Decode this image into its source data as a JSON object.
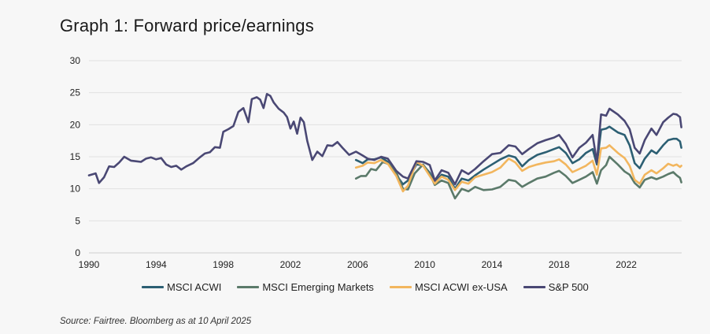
{
  "title": "Graph 1: Forward price/earnings",
  "source": "Source: Fairtree. Bloomberg as at 10 April 2025",
  "chart_data": {
    "type": "line",
    "title": "Graph 1: Forward price/earnings",
    "xlabel": "",
    "ylabel": "",
    "xlim": [
      1990,
      2025.3
    ],
    "ylim": [
      0,
      30
    ],
    "x_ticks": [
      "1990",
      "1994",
      "1998",
      "2002",
      "2006",
      "2010",
      "2014",
      "2018",
      "2022"
    ],
    "y_ticks": [
      "0",
      "5",
      "10",
      "15",
      "20",
      "25",
      "30"
    ],
    "grid": "horizontal",
    "legend_position": "bottom",
    "series": [
      {
        "name": "MSCI ACWI",
        "color": "#2c5f73",
        "points": [
          [
            2005.9,
            14.5
          ],
          [
            2006.3,
            14.0
          ],
          [
            2006.6,
            14.6
          ],
          [
            2007.0,
            14.6
          ],
          [
            2007.4,
            14.9
          ],
          [
            2007.8,
            14.2
          ],
          [
            2008.3,
            12.2
          ],
          [
            2008.7,
            10.7
          ],
          [
            2009.0,
            11.3
          ],
          [
            2009.5,
            13.8
          ],
          [
            2009.9,
            13.7
          ],
          [
            2010.3,
            12.5
          ],
          [
            2010.6,
            10.9
          ],
          [
            2011.0,
            12.2
          ],
          [
            2011.4,
            11.9
          ],
          [
            2011.8,
            10.0
          ],
          [
            2012.2,
            11.6
          ],
          [
            2012.6,
            11.3
          ],
          [
            2013.0,
            12.1
          ],
          [
            2013.5,
            13.0
          ],
          [
            2014.0,
            13.8
          ],
          [
            2014.5,
            14.6
          ],
          [
            2015.0,
            15.2
          ],
          [
            2015.4,
            14.9
          ],
          [
            2015.8,
            13.5
          ],
          [
            2016.2,
            14.5
          ],
          [
            2016.7,
            15.3
          ],
          [
            2017.2,
            15.7
          ],
          [
            2017.7,
            16.2
          ],
          [
            2018.0,
            16.5
          ],
          [
            2018.4,
            15.6
          ],
          [
            2018.8,
            14.0
          ],
          [
            2019.2,
            14.6
          ],
          [
            2019.6,
            15.6
          ],
          [
            2020.0,
            16.2
          ],
          [
            2020.25,
            13.8
          ],
          [
            2020.5,
            19.2
          ],
          [
            2020.8,
            19.4
          ],
          [
            2021.0,
            19.7
          ],
          [
            2021.5,
            18.8
          ],
          [
            2021.9,
            18.4
          ],
          [
            2022.2,
            16.8
          ],
          [
            2022.5,
            14.0
          ],
          [
            2022.8,
            13.2
          ],
          [
            2023.1,
            14.7
          ],
          [
            2023.5,
            16.0
          ],
          [
            2023.8,
            15.5
          ],
          [
            2024.2,
            16.8
          ],
          [
            2024.5,
            17.6
          ],
          [
            2024.8,
            17.8
          ],
          [
            2025.0,
            17.8
          ],
          [
            2025.2,
            17.4
          ],
          [
            2025.28,
            16.4
          ]
        ]
      },
      {
        "name": "MSCI Emerging Markets",
        "color": "#5b7a6a",
        "points": [
          [
            2005.9,
            11.6
          ],
          [
            2006.2,
            12.0
          ],
          [
            2006.5,
            12.0
          ],
          [
            2006.8,
            13.1
          ],
          [
            2007.1,
            12.9
          ],
          [
            2007.5,
            14.2
          ],
          [
            2007.9,
            13.8
          ],
          [
            2008.3,
            12.6
          ],
          [
            2008.7,
            10.0
          ],
          [
            2009.0,
            9.9
          ],
          [
            2009.4,
            12.4
          ],
          [
            2009.9,
            13.8
          ],
          [
            2010.3,
            12.3
          ],
          [
            2010.6,
            10.6
          ],
          [
            2011.0,
            11.3
          ],
          [
            2011.4,
            10.9
          ],
          [
            2011.8,
            8.5
          ],
          [
            2012.2,
            10.0
          ],
          [
            2012.6,
            9.6
          ],
          [
            2013.0,
            10.3
          ],
          [
            2013.5,
            9.8
          ],
          [
            2014.0,
            9.9
          ],
          [
            2014.5,
            10.3
          ],
          [
            2015.0,
            11.4
          ],
          [
            2015.4,
            11.2
          ],
          [
            2015.8,
            10.3
          ],
          [
            2016.2,
            10.9
          ],
          [
            2016.7,
            11.6
          ],
          [
            2017.2,
            11.9
          ],
          [
            2017.7,
            12.5
          ],
          [
            2018.0,
            12.8
          ],
          [
            2018.4,
            12.0
          ],
          [
            2018.8,
            10.9
          ],
          [
            2019.2,
            11.4
          ],
          [
            2019.6,
            11.9
          ],
          [
            2020.0,
            12.6
          ],
          [
            2020.25,
            10.8
          ],
          [
            2020.5,
            12.9
          ],
          [
            2020.8,
            13.7
          ],
          [
            2021.0,
            15.0
          ],
          [
            2021.5,
            13.8
          ],
          [
            2021.9,
            12.7
          ],
          [
            2022.2,
            12.2
          ],
          [
            2022.5,
            10.9
          ],
          [
            2022.8,
            10.2
          ],
          [
            2023.1,
            11.4
          ],
          [
            2023.5,
            11.8
          ],
          [
            2023.8,
            11.5
          ],
          [
            2024.2,
            11.9
          ],
          [
            2024.5,
            12.3
          ],
          [
            2024.8,
            12.6
          ],
          [
            2025.0,
            12.1
          ],
          [
            2025.2,
            11.7
          ],
          [
            2025.28,
            11.0
          ]
        ]
      },
      {
        "name": "MSCI ACWI ex-USA",
        "color": "#f2b65e",
        "points": [
          [
            2005.9,
            13.3
          ],
          [
            2006.3,
            13.6
          ],
          [
            2006.6,
            14.1
          ],
          [
            2007.0,
            14.0
          ],
          [
            2007.4,
            14.5
          ],
          [
            2007.8,
            13.9
          ],
          [
            2008.3,
            12.0
          ],
          [
            2008.7,
            9.6
          ],
          [
            2009.0,
            10.5
          ],
          [
            2009.5,
            14.2
          ],
          [
            2009.9,
            13.6
          ],
          [
            2010.3,
            12.0
          ],
          [
            2010.6,
            10.8
          ],
          [
            2011.0,
            11.9
          ],
          [
            2011.4,
            11.4
          ],
          [
            2011.8,
            9.8
          ],
          [
            2012.2,
            11.1
          ],
          [
            2012.6,
            10.8
          ],
          [
            2013.0,
            11.8
          ],
          [
            2013.5,
            12.2
          ],
          [
            2014.0,
            12.6
          ],
          [
            2014.5,
            13.3
          ],
          [
            2015.0,
            14.7
          ],
          [
            2015.4,
            14.1
          ],
          [
            2015.8,
            12.8
          ],
          [
            2016.2,
            13.4
          ],
          [
            2016.7,
            13.8
          ],
          [
            2017.2,
            14.1
          ],
          [
            2017.7,
            14.3
          ],
          [
            2018.0,
            14.6
          ],
          [
            2018.4,
            13.8
          ],
          [
            2018.8,
            12.6
          ],
          [
            2019.2,
            13.1
          ],
          [
            2019.6,
            13.6
          ],
          [
            2020.0,
            14.4
          ],
          [
            2020.25,
            12.2
          ],
          [
            2020.5,
            16.3
          ],
          [
            2020.8,
            16.4
          ],
          [
            2021.0,
            16.8
          ],
          [
            2021.5,
            15.6
          ],
          [
            2021.9,
            14.8
          ],
          [
            2022.2,
            13.6
          ],
          [
            2022.5,
            11.4
          ],
          [
            2022.8,
            10.8
          ],
          [
            2023.1,
            12.2
          ],
          [
            2023.5,
            12.9
          ],
          [
            2023.8,
            12.4
          ],
          [
            2024.2,
            13.2
          ],
          [
            2024.5,
            13.9
          ],
          [
            2024.8,
            13.6
          ],
          [
            2025.0,
            13.8
          ],
          [
            2025.2,
            13.4
          ],
          [
            2025.28,
            13.6
          ]
        ]
      },
      {
        "name": "S&P 500",
        "color": "#4a4874",
        "points": [
          [
            1990.0,
            12.1
          ],
          [
            1990.4,
            12.4
          ],
          [
            1990.6,
            10.9
          ],
          [
            1990.9,
            11.8
          ],
          [
            1991.2,
            13.5
          ],
          [
            1991.5,
            13.4
          ],
          [
            1991.8,
            14.1
          ],
          [
            1992.1,
            15.0
          ],
          [
            1992.5,
            14.4
          ],
          [
            1992.8,
            14.3
          ],
          [
            1993.1,
            14.2
          ],
          [
            1993.4,
            14.7
          ],
          [
            1993.7,
            14.9
          ],
          [
            1994.0,
            14.6
          ],
          [
            1994.3,
            14.8
          ],
          [
            1994.6,
            13.8
          ],
          [
            1994.9,
            13.4
          ],
          [
            1995.2,
            13.6
          ],
          [
            1995.5,
            13.0
          ],
          [
            1995.8,
            13.5
          ],
          [
            1996.2,
            14.0
          ],
          [
            1996.6,
            14.9
          ],
          [
            1996.9,
            15.5
          ],
          [
            1997.2,
            15.7
          ],
          [
            1997.5,
            16.5
          ],
          [
            1997.8,
            16.4
          ],
          [
            1998.0,
            18.9
          ],
          [
            1998.3,
            19.3
          ],
          [
            1998.6,
            19.8
          ],
          [
            1998.9,
            22.0
          ],
          [
            1999.2,
            22.6
          ],
          [
            1999.5,
            20.4
          ],
          [
            1999.7,
            24.0
          ],
          [
            2000.0,
            24.3
          ],
          [
            2000.2,
            23.9
          ],
          [
            2000.4,
            22.6
          ],
          [
            2000.6,
            24.8
          ],
          [
            2000.8,
            24.5
          ],
          [
            2001.0,
            23.5
          ],
          [
            2001.3,
            22.5
          ],
          [
            2001.6,
            21.9
          ],
          [
            2001.8,
            21.2
          ],
          [
            2002.0,
            19.4
          ],
          [
            2002.2,
            20.5
          ],
          [
            2002.4,
            18.6
          ],
          [
            2002.6,
            21.1
          ],
          [
            2002.8,
            20.4
          ],
          [
            2003.0,
            17.5
          ],
          [
            2003.3,
            14.5
          ],
          [
            2003.6,
            15.8
          ],
          [
            2003.9,
            15.1
          ],
          [
            2004.2,
            16.8
          ],
          [
            2004.5,
            16.7
          ],
          [
            2004.8,
            17.3
          ],
          [
            2005.1,
            16.4
          ],
          [
            2005.5,
            15.3
          ],
          [
            2005.9,
            15.8
          ],
          [
            2006.3,
            15.2
          ],
          [
            2006.6,
            14.7
          ],
          [
            2007.0,
            14.5
          ],
          [
            2007.4,
            15.0
          ],
          [
            2007.8,
            14.7
          ],
          [
            2008.3,
            12.8
          ],
          [
            2008.7,
            11.9
          ],
          [
            2009.0,
            11.6
          ],
          [
            2009.5,
            14.3
          ],
          [
            2009.9,
            14.2
          ],
          [
            2010.3,
            13.7
          ],
          [
            2010.6,
            11.3
          ],
          [
            2011.0,
            12.9
          ],
          [
            2011.4,
            12.5
          ],
          [
            2011.8,
            10.7
          ],
          [
            2012.2,
            12.9
          ],
          [
            2012.6,
            12.3
          ],
          [
            2013.0,
            13.1
          ],
          [
            2013.5,
            14.3
          ],
          [
            2014.0,
            15.4
          ],
          [
            2014.5,
            15.6
          ],
          [
            2015.0,
            16.8
          ],
          [
            2015.4,
            16.6
          ],
          [
            2015.8,
            15.4
          ],
          [
            2016.2,
            16.2
          ],
          [
            2016.7,
            17.1
          ],
          [
            2017.2,
            17.6
          ],
          [
            2017.7,
            18.0
          ],
          [
            2018.0,
            18.4
          ],
          [
            2018.4,
            17.0
          ],
          [
            2018.8,
            14.9
          ],
          [
            2019.2,
            16.4
          ],
          [
            2019.6,
            17.2
          ],
          [
            2020.0,
            18.4
          ],
          [
            2020.25,
            14.1
          ],
          [
            2020.5,
            21.6
          ],
          [
            2020.8,
            21.4
          ],
          [
            2021.0,
            22.5
          ],
          [
            2021.5,
            21.6
          ],
          [
            2021.9,
            20.6
          ],
          [
            2022.2,
            19.3
          ],
          [
            2022.5,
            16.4
          ],
          [
            2022.8,
            15.5
          ],
          [
            2023.1,
            17.6
          ],
          [
            2023.5,
            19.4
          ],
          [
            2023.8,
            18.4
          ],
          [
            2024.2,
            20.4
          ],
          [
            2024.5,
            21.1
          ],
          [
            2024.8,
            21.7
          ],
          [
            2025.0,
            21.6
          ],
          [
            2025.2,
            21.2
          ],
          [
            2025.28,
            19.6
          ]
        ]
      }
    ]
  }
}
